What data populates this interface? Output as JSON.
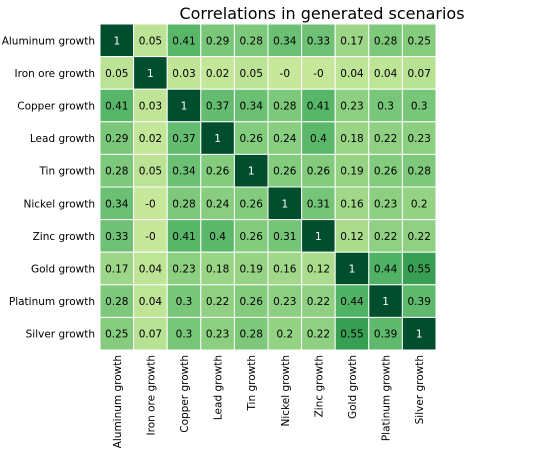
{
  "chart_data": {
    "type": "heatmap",
    "title": "Correlations in generated scenarios",
    "row_labels": [
      "Aluminum growth",
      "Iron ore growth",
      "Copper growth",
      "Lead growth",
      "Tin growth",
      "Nickel growth",
      "Zinc growth",
      "Gold growth",
      "Platinum growth",
      "Silver growth"
    ],
    "col_labels": [
      "Aluminum growth",
      "Iron ore growth",
      "Copper growth",
      "Lead growth",
      "Tin growth",
      "Nickel growth",
      "Zinc growth",
      "Gold growth",
      "Platinum growth",
      "Silver growth"
    ],
    "values": [
      [
        1,
        0.05,
        0.41,
        0.29,
        0.28,
        0.34,
        0.33,
        0.17,
        0.28,
        0.25
      ],
      [
        0.05,
        1,
        0.03,
        0.02,
        0.05,
        -0.0,
        -0.0,
        0.04,
        0.04,
        0.07
      ],
      [
        0.41,
        0.03,
        1,
        0.37,
        0.34,
        0.28,
        0.41,
        0.23,
        0.3,
        0.3
      ],
      [
        0.29,
        0.02,
        0.37,
        1,
        0.26,
        0.24,
        0.4,
        0.18,
        0.22,
        0.23
      ],
      [
        0.28,
        0.05,
        0.34,
        0.26,
        1,
        0.26,
        0.26,
        0.19,
        0.26,
        0.28
      ],
      [
        0.34,
        -0.0,
        0.28,
        0.24,
        0.26,
        1,
        0.31,
        0.16,
        0.23,
        0.2
      ],
      [
        0.33,
        -0.0,
        0.41,
        0.4,
        0.26,
        0.31,
        1,
        0.12,
        0.22,
        0.22
      ],
      [
        0.17,
        0.04,
        0.23,
        0.18,
        0.19,
        0.16,
        0.12,
        1,
        0.44,
        0.55
      ],
      [
        0.28,
        0.04,
        0.3,
        0.22,
        0.26,
        0.23,
        0.22,
        0.44,
        1,
        0.39
      ],
      [
        0.25,
        0.07,
        0.3,
        0.23,
        0.28,
        0.2,
        0.22,
        0.55,
        0.39,
        1
      ]
    ],
    "value_labels": [
      [
        "1",
        "0.05",
        "0.41",
        "0.29",
        "0.28",
        "0.34",
        "0.33",
        "0.17",
        "0.28",
        "0.25"
      ],
      [
        "0.05",
        "1",
        "0.03",
        "0.02",
        "0.05",
        "-0",
        "-0",
        "0.04",
        "0.04",
        "0.07"
      ],
      [
        "0.41",
        "0.03",
        "1",
        "0.37",
        "0.34",
        "0.28",
        "0.41",
        "0.23",
        "0.3",
        "0.3"
      ],
      [
        "0.29",
        "0.02",
        "0.37",
        "1",
        "0.26",
        "0.24",
        "0.4",
        "0.18",
        "0.22",
        "0.23"
      ],
      [
        "0.28",
        "0.05",
        "0.34",
        "0.26",
        "1",
        "0.26",
        "0.26",
        "0.19",
        "0.26",
        "0.28"
      ],
      [
        "0.34",
        "-0",
        "0.28",
        "0.24",
        "0.26",
        "1",
        "0.31",
        "0.16",
        "0.23",
        "0.2"
      ],
      [
        "0.33",
        "-0",
        "0.41",
        "0.4",
        "0.26",
        "0.31",
        "1",
        "0.12",
        "0.22",
        "0.22"
      ],
      [
        "0.17",
        "0.04",
        "0.23",
        "0.18",
        "0.19",
        "0.16",
        "0.12",
        "1",
        "0.44",
        "0.55"
      ],
      [
        "0.28",
        "0.04",
        "0.3",
        "0.22",
        "0.26",
        "0.23",
        "0.22",
        "0.44",
        "1",
        "0.39"
      ],
      [
        "0.25",
        "0.07",
        "0.3",
        "0.23",
        "0.28",
        "0.2",
        "0.22",
        "0.55",
        "0.39",
        "1"
      ]
    ],
    "colormap": "YlGn",
    "color_range": [
      0,
      1
    ],
    "colorbar": false,
    "cell_border_color": "#ffffff",
    "grid": false
  }
}
